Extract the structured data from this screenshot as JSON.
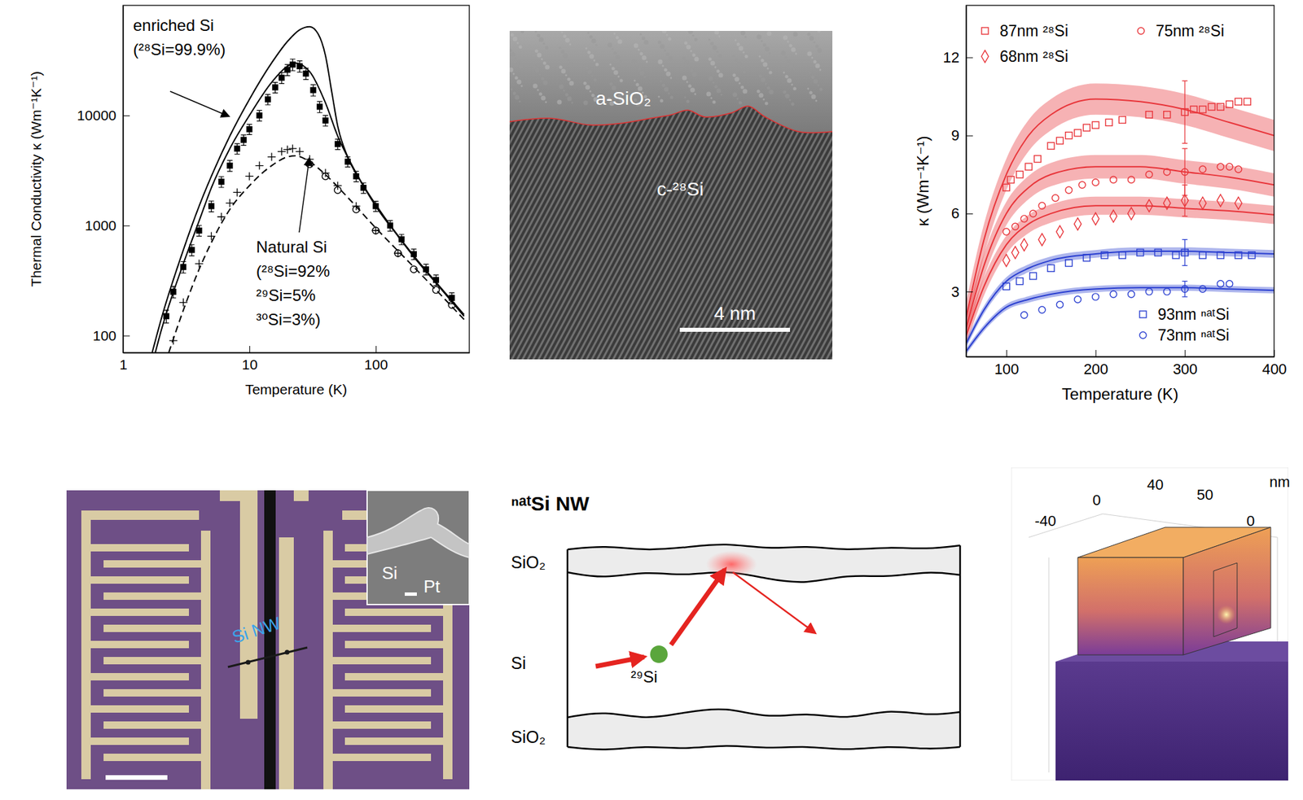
{
  "chart_data": [
    {
      "type": "line",
      "log": true,
      "x_label": "Temperature (K)",
      "y_label": "Thermal Conductivity  κ (Wm⁻¹K⁻¹)",
      "xlim": [
        1,
        550
      ],
      "ylim": [
        70,
        100000
      ],
      "xticks": [
        1,
        10,
        100
      ],
      "yticks": [
        100,
        1000,
        10000
      ],
      "annotations": [
        {
          "lines": [
            "enriched Si",
            "(²⁸Si=99.9%)"
          ]
        },
        {
          "lines": [
            "Natural Si",
            "(²⁸Si=92%",
            "²⁹Si=5%",
            "³⁰Si=3%)"
          ]
        }
      ],
      "series": [
        {
          "type": "line",
          "line_style": "solid",
          "color": "#000000",
          "x": [
            1.7,
            2,
            3,
            4,
            5,
            7,
            10,
            15,
            20,
            25,
            30,
            35,
            40,
            45,
            50,
            60,
            80,
            100,
            200,
            300,
            500
          ],
          "values": [
            70,
            140,
            600,
            1500,
            2800,
            6500,
            14000,
            30000,
            47000,
            60000,
            64000,
            55000,
            35000,
            16000,
            8000,
            4200,
            2300,
            1550,
            530,
            305,
            155
          ]
        },
        {
          "type": "line",
          "line_style": "solid",
          "color": "#000000",
          "x": [
            1.8,
            2,
            3,
            4,
            5,
            7,
            10,
            15,
            20,
            23,
            30,
            40,
            50,
            70,
            100,
            150,
            200,
            300,
            500
          ],
          "values": [
            70,
            110,
            450,
            1100,
            2200,
            5000,
            10000,
            20000,
            28000,
            30000,
            25000,
            13000,
            6500,
            3000,
            1500,
            800,
            520,
            300,
            150
          ]
        },
        {
          "type": "scatter",
          "marker": "filled-square",
          "color": "#000000",
          "x": [
            2.2,
            2.5,
            3,
            3.5,
            4,
            5,
            6,
            7,
            8,
            9,
            10,
            12,
            14,
            16,
            18,
            20,
            22,
            25,
            28,
            32,
            36,
            40,
            50,
            60,
            70,
            80,
            100,
            130,
            160,
            200,
            250,
            300,
            400
          ],
          "values": [
            150,
            250,
            420,
            600,
            900,
            1500,
            2500,
            3500,
            5000,
            6000,
            7500,
            10000,
            14000,
            18000,
            22000,
            26000,
            29000,
            28000,
            24000,
            17000,
            12000,
            9000,
            5500,
            3800,
            2800,
            2200,
            1500,
            1000,
            750,
            550,
            400,
            320,
            220
          ],
          "errors": [
            20,
            30,
            50,
            70,
            100,
            170,
            280,
            400,
            550,
            650,
            800,
            1100,
            1500,
            2000,
            2500,
            3000,
            3500,
            3300,
            2800,
            2000,
            1400,
            1000,
            600,
            400,
            300,
            240,
            160,
            110,
            80,
            60,
            45,
            35,
            25
          ]
        },
        {
          "type": "scatter",
          "marker": "plus",
          "color": "#000000",
          "x": [
            2.5,
            3,
            4,
            5,
            6,
            7,
            8,
            10,
            12,
            15,
            18,
            20,
            22,
            25,
            30,
            40,
            50,
            70,
            100,
            150
          ],
          "values": [
            90,
            200,
            450,
            800,
            1200,
            1600,
            2000,
            2800,
            3500,
            4200,
            4700,
            4900,
            5000,
            4700,
            4000,
            3000,
            2300,
            1500,
            900,
            560
          ]
        },
        {
          "type": "line",
          "line_style": "dashed",
          "color": "#000000",
          "x": [
            2.3,
            3,
            4,
            5,
            7,
            10,
            15,
            20,
            23,
            30,
            40,
            60,
            100,
            200,
            300,
            500
          ],
          "values": [
            70,
            170,
            400,
            700,
            1400,
            2300,
            3500,
            4200,
            4300,
            3800,
            2900,
            1800,
            950,
            420,
            260,
            140
          ]
        },
        {
          "type": "scatter",
          "marker": "open-circle",
          "color": "#000000",
          "x": [
            30,
            40,
            50,
            70,
            100,
            150,
            200,
            300,
            400
          ],
          "values": [
            3600,
            2800,
            2100,
            1400,
            900,
            560,
            400,
            260,
            190
          ]
        }
      ]
    },
    {
      "type": "line",
      "x_label": "Temperature (K)",
      "y_label": "κ (Wm⁻¹K⁻¹)",
      "xlim": [
        55,
        400
      ],
      "ylim": [
        0.5,
        14
      ],
      "xticks": [
        100,
        200,
        300,
        400
      ],
      "yticks": [
        3,
        6,
        9,
        12
      ],
      "legend": "upper left",
      "series": [
        {
          "type": "line",
          "color": "#e8353a",
          "line_style": "solid",
          "x": [
            55,
            75,
            100,
            125,
            150,
            200,
            250,
            300,
            350,
            400
          ],
          "values": [
            2.0,
            5.0,
            7.5,
            9.0,
            9.8,
            10.4,
            10.3,
            10.0,
            9.5,
            9.0
          ],
          "lower": [
            1.4,
            4.4,
            6.9,
            8.4,
            9.2,
            9.8,
            9.7,
            9.4,
            8.9,
            8.4
          ],
          "upper": [
            2.6,
            5.6,
            8.1,
            9.6,
            10.4,
            11.0,
            10.9,
            10.6,
            10.1,
            9.6
          ]
        },
        {
          "type": "line",
          "color": "#e8353a",
          "line_style": "solid",
          "x": [
            55,
            75,
            100,
            125,
            150,
            200,
            250,
            300,
            350,
            400
          ],
          "values": [
            1.6,
            4.0,
            6.0,
            7.0,
            7.5,
            7.8,
            7.8,
            7.6,
            7.4,
            7.1
          ],
          "lower": [
            1.15,
            3.55,
            5.55,
            6.55,
            7.05,
            7.35,
            7.35,
            7.15,
            6.95,
            6.65
          ],
          "upper": [
            2.05,
            4.45,
            6.45,
            7.45,
            7.95,
            8.25,
            8.25,
            8.05,
            7.85,
            7.55
          ]
        },
        {
          "type": "line",
          "color": "#e8353a",
          "line_style": "solid",
          "x": [
            55,
            75,
            100,
            125,
            150,
            200,
            250,
            300,
            350,
            400
          ],
          "values": [
            1.3,
            3.2,
            4.8,
            5.6,
            6.0,
            6.3,
            6.3,
            6.2,
            6.1,
            5.95
          ],
          "lower": [
            0.95,
            2.85,
            4.45,
            5.25,
            5.65,
            5.95,
            5.95,
            5.85,
            5.75,
            5.6
          ],
          "upper": [
            1.65,
            3.55,
            5.15,
            5.95,
            6.35,
            6.65,
            6.65,
            6.55,
            6.45,
            6.3
          ]
        },
        {
          "type": "line",
          "color": "#2a3fd0",
          "line_style": "solid",
          "x": [
            55,
            75,
            100,
            125,
            150,
            200,
            250,
            300,
            350,
            400
          ],
          "values": [
            1.0,
            2.3,
            3.4,
            3.9,
            4.2,
            4.45,
            4.55,
            4.55,
            4.5,
            4.45
          ],
          "lower": [
            0.85,
            2.15,
            3.25,
            3.75,
            4.05,
            4.3,
            4.4,
            4.4,
            4.35,
            4.3
          ],
          "upper": [
            1.15,
            2.45,
            3.55,
            4.05,
            4.35,
            4.6,
            4.7,
            4.7,
            4.65,
            4.6
          ]
        },
        {
          "type": "line",
          "color": "#2a3fd0",
          "line_style": "solid",
          "x": [
            55,
            75,
            100,
            125,
            150,
            200,
            250,
            300,
            350,
            400
          ],
          "values": [
            0.7,
            1.6,
            2.4,
            2.7,
            2.9,
            3.1,
            3.15,
            3.15,
            3.1,
            3.05
          ],
          "lower": [
            0.58,
            1.48,
            2.28,
            2.58,
            2.78,
            2.98,
            3.03,
            3.03,
            2.98,
            2.93
          ],
          "upper": [
            0.82,
            1.72,
            2.52,
            2.82,
            3.02,
            3.22,
            3.27,
            3.27,
            3.22,
            3.17
          ]
        },
        {
          "type": "scatter",
          "name": "87nm ²⁸Si",
          "marker": "open-square",
          "color": "#e8353a",
          "x": [
            100,
            105,
            115,
            125,
            135,
            150,
            160,
            170,
            180,
            190,
            200,
            215,
            230,
            260,
            280,
            300,
            310,
            320,
            330,
            340,
            350,
            360,
            370
          ],
          "values": [
            7.0,
            7.3,
            7.5,
            7.8,
            8.1,
            8.6,
            8.8,
            9.0,
            9.1,
            9.3,
            9.4,
            9.5,
            9.6,
            9.8,
            9.8,
            9.9,
            10.0,
            10.0,
            10.1,
            10.1,
            10.2,
            10.3,
            10.3
          ],
          "errors": [
            null,
            null,
            null,
            null,
            null,
            null,
            null,
            null,
            null,
            null,
            null,
            null,
            null,
            null,
            null,
            1.2,
            null,
            null,
            null,
            null,
            null,
            null,
            null
          ]
        },
        {
          "type": "scatter",
          "name": "75nm ²⁸Si",
          "marker": "open-circle",
          "color": "#e8353a",
          "x": [
            100,
            110,
            120,
            130,
            140,
            155,
            170,
            185,
            200,
            220,
            240,
            260,
            280,
            300,
            320,
            340,
            350,
            360
          ],
          "values": [
            5.3,
            5.5,
            5.8,
            6.0,
            6.3,
            6.6,
            6.9,
            7.1,
            7.2,
            7.3,
            7.3,
            7.5,
            7.6,
            7.6,
            7.7,
            7.8,
            7.8,
            7.7
          ],
          "errors": [
            null,
            null,
            null,
            null,
            null,
            null,
            null,
            null,
            null,
            null,
            null,
            null,
            null,
            0.9,
            null,
            null,
            null,
            null
          ]
        },
        {
          "type": "scatter",
          "name": "68nm ²⁸Si",
          "marker": "open-diamond",
          "color": "#e8353a",
          "x": [
            100,
            110,
            120,
            140,
            160,
            180,
            200,
            220,
            240,
            260,
            280,
            300,
            320,
            340,
            360
          ],
          "values": [
            4.2,
            4.5,
            4.8,
            5.0,
            5.3,
            5.6,
            5.8,
            5.9,
            6.0,
            6.3,
            6.4,
            6.5,
            6.4,
            6.5,
            6.4
          ],
          "errors": [
            null,
            null,
            null,
            null,
            null,
            null,
            null,
            null,
            null,
            null,
            null,
            0.6,
            null,
            null,
            null
          ]
        },
        {
          "type": "scatter",
          "name": "93nm ⁿᵃᵗSi",
          "marker": "open-square",
          "color": "#2a3fd0",
          "x": [
            100,
            115,
            130,
            150,
            170,
            190,
            210,
            230,
            250,
            270,
            290,
            300,
            320,
            340,
            360,
            375
          ],
          "values": [
            3.2,
            3.4,
            3.6,
            3.9,
            4.1,
            4.3,
            4.4,
            4.4,
            4.5,
            4.5,
            4.4,
            4.5,
            4.4,
            4.4,
            4.4,
            4.4
          ],
          "errors": [
            null,
            null,
            null,
            null,
            null,
            null,
            null,
            null,
            null,
            null,
            null,
            0.5,
            null,
            null,
            null,
            null
          ]
        },
        {
          "type": "scatter",
          "name": "73nm ⁿᵃᵗSi",
          "marker": "open-circle",
          "color": "#2a3fd0",
          "x": [
            120,
            140,
            160,
            180,
            200,
            220,
            240,
            260,
            280,
            300,
            320,
            340,
            350
          ],
          "values": [
            2.1,
            2.3,
            2.5,
            2.7,
            2.8,
            2.9,
            2.9,
            3.0,
            3.0,
            3.1,
            3.1,
            3.3,
            3.3
          ],
          "errors": [
            null,
            null,
            null,
            null,
            null,
            null,
            null,
            null,
            null,
            0.3,
            null,
            null,
            null
          ]
        }
      ]
    }
  ],
  "images": {
    "tem": {
      "labels": [
        "a-SiO₂",
        "c-²⁸Si"
      ],
      "scale_bar": "4 nm"
    },
    "device": {
      "nanowire_label": "Si NW",
      "inset_labels": [
        "Si",
        "Pt"
      ]
    },
    "schematic": {
      "title": "ⁿᵃᵗSi NW",
      "layer_labels": [
        "SiO₂",
        "Si",
        "SiO₂"
      ],
      "isotope_label": "²⁹Si"
    },
    "simulation": {
      "axis_labels": [
        "-40",
        "0",
        "40",
        "50",
        "0",
        "nm"
      ]
    }
  }
}
